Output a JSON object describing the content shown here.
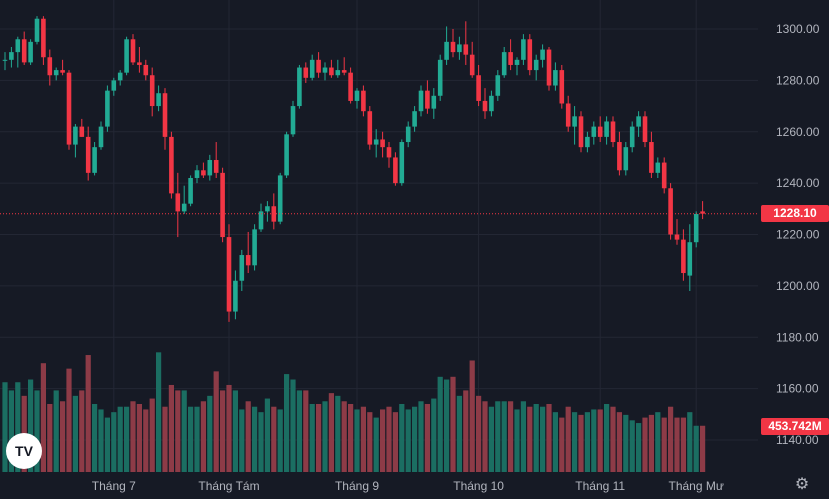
{
  "chart_data": {
    "type": "candlestick",
    "price_axis": {
      "min": 1130,
      "max": 1308,
      "ticks": [
        1300,
        1280,
        1260,
        1240,
        1220,
        1200,
        1180,
        1160,
        1140
      ],
      "tick_labels": [
        "1300.00",
        "1280.00",
        "1260.00",
        "1240.00",
        "1220.00",
        "1200.00",
        "1180.00",
        "1160.00",
        "1140.00"
      ]
    },
    "x_labels": [
      "Tháng 7",
      "Tháng Tám",
      "Tháng 9",
      "Tháng 10",
      "Tháng 11",
      "Tháng Mư"
    ],
    "x_label_bars": [
      17,
      35,
      55,
      74,
      93,
      108
    ],
    "last_price": {
      "value": 1228.1,
      "label": "1228.10",
      "color": "#f23645"
    },
    "last_volume": {
      "label": "453.742M",
      "color": "#f23645"
    },
    "colors": {
      "up": "#22ab94",
      "down": "#f23645",
      "up_volume": "#1b6e62",
      "down_volume": "#8d3b47",
      "background": "#161a25"
    },
    "ohlc": [
      {
        "o": 1288,
        "h": 1291,
        "l": 1284,
        "c": 1288
      },
      {
        "o": 1288,
        "h": 1293,
        "l": 1285,
        "c": 1291
      },
      {
        "o": 1291,
        "h": 1297,
        "l": 1285,
        "c": 1296
      },
      {
        "o": 1296,
        "h": 1299,
        "l": 1286,
        "c": 1287
      },
      {
        "o": 1287,
        "h": 1296,
        "l": 1286,
        "c": 1295
      },
      {
        "o": 1295,
        "h": 1305,
        "l": 1294,
        "c": 1304
      },
      {
        "o": 1304,
        "h": 1305,
        "l": 1286,
        "c": 1289
      },
      {
        "o": 1289,
        "h": 1292,
        "l": 1278,
        "c": 1282
      },
      {
        "o": 1282,
        "h": 1285,
        "l": 1280,
        "c": 1284
      },
      {
        "o": 1284,
        "h": 1288,
        "l": 1282,
        "c": 1283
      },
      {
        "o": 1283,
        "h": 1284,
        "l": 1253,
        "c": 1255
      },
      {
        "o": 1255,
        "h": 1263,
        "l": 1250,
        "c": 1262
      },
      {
        "o": 1262,
        "h": 1265,
        "l": 1258,
        "c": 1258
      },
      {
        "o": 1258,
        "h": 1262,
        "l": 1241,
        "c": 1244
      },
      {
        "o": 1244,
        "h": 1256,
        "l": 1243,
        "c": 1254
      },
      {
        "o": 1254,
        "h": 1264,
        "l": 1253,
        "c": 1262
      },
      {
        "o": 1262,
        "h": 1278,
        "l": 1260,
        "c": 1276
      },
      {
        "o": 1276,
        "h": 1281,
        "l": 1274,
        "c": 1280
      },
      {
        "o": 1280,
        "h": 1284,
        "l": 1278,
        "c": 1283
      },
      {
        "o": 1283,
        "h": 1297,
        "l": 1282,
        "c": 1296
      },
      {
        "o": 1296,
        "h": 1298,
        "l": 1286,
        "c": 1287
      },
      {
        "o": 1287,
        "h": 1293,
        "l": 1283,
        "c": 1286
      },
      {
        "o": 1286,
        "h": 1288,
        "l": 1280,
        "c": 1282
      },
      {
        "o": 1282,
        "h": 1285,
        "l": 1266,
        "c": 1270
      },
      {
        "o": 1270,
        "h": 1278,
        "l": 1268,
        "c": 1275
      },
      {
        "o": 1275,
        "h": 1277,
        "l": 1253,
        "c": 1258
      },
      {
        "o": 1258,
        "h": 1260,
        "l": 1234,
        "c": 1236
      },
      {
        "o": 1236,
        "h": 1244,
        "l": 1219,
        "c": 1229
      },
      {
        "o": 1229,
        "h": 1239,
        "l": 1228,
        "c": 1232
      },
      {
        "o": 1232,
        "h": 1243,
        "l": 1231,
        "c": 1242
      },
      {
        "o": 1242,
        "h": 1247,
        "l": 1240,
        "c": 1245
      },
      {
        "o": 1245,
        "h": 1248,
        "l": 1242,
        "c": 1243
      },
      {
        "o": 1243,
        "h": 1251,
        "l": 1241,
        "c": 1249
      },
      {
        "o": 1249,
        "h": 1256,
        "l": 1242,
        "c": 1244
      },
      {
        "o": 1244,
        "h": 1246,
        "l": 1217,
        "c": 1219
      },
      {
        "o": 1219,
        "h": 1224,
        "l": 1186,
        "c": 1190
      },
      {
        "o": 1190,
        "h": 1206,
        "l": 1187,
        "c": 1202
      },
      {
        "o": 1202,
        "h": 1214,
        "l": 1198,
        "c": 1212
      },
      {
        "o": 1212,
        "h": 1221,
        "l": 1205,
        "c": 1208
      },
      {
        "o": 1208,
        "h": 1224,
        "l": 1206,
        "c": 1222
      },
      {
        "o": 1222,
        "h": 1232,
        "l": 1221,
        "c": 1229
      },
      {
        "o": 1229,
        "h": 1233,
        "l": 1225,
        "c": 1231
      },
      {
        "o": 1231,
        "h": 1236,
        "l": 1222,
        "c": 1225
      },
      {
        "o": 1225,
        "h": 1244,
        "l": 1224,
        "c": 1243
      },
      {
        "o": 1243,
        "h": 1260,
        "l": 1242,
        "c": 1259
      },
      {
        "o": 1259,
        "h": 1272,
        "l": 1258,
        "c": 1270
      },
      {
        "o": 1270,
        "h": 1286,
        "l": 1269,
        "c": 1285
      },
      {
        "o": 1285,
        "h": 1287,
        "l": 1279,
        "c": 1281
      },
      {
        "o": 1281,
        "h": 1290,
        "l": 1280,
        "c": 1288
      },
      {
        "o": 1288,
        "h": 1291,
        "l": 1281,
        "c": 1283
      },
      {
        "o": 1283,
        "h": 1287,
        "l": 1280,
        "c": 1285
      },
      {
        "o": 1285,
        "h": 1288,
        "l": 1281,
        "c": 1282
      },
      {
        "o": 1282,
        "h": 1288,
        "l": 1281,
        "c": 1284
      },
      {
        "o": 1284,
        "h": 1289,
        "l": 1282,
        "c": 1283
      },
      {
        "o": 1283,
        "h": 1285,
        "l": 1271,
        "c": 1272
      },
      {
        "o": 1272,
        "h": 1277,
        "l": 1269,
        "c": 1276
      },
      {
        "o": 1276,
        "h": 1278,
        "l": 1266,
        "c": 1268
      },
      {
        "o": 1268,
        "h": 1270,
        "l": 1253,
        "c": 1255
      },
      {
        "o": 1255,
        "h": 1261,
        "l": 1250,
        "c": 1257
      },
      {
        "o": 1257,
        "h": 1260,
        "l": 1250,
        "c": 1254
      },
      {
        "o": 1254,
        "h": 1256,
        "l": 1246,
        "c": 1250
      },
      {
        "o": 1250,
        "h": 1252,
        "l": 1239,
        "c": 1240
      },
      {
        "o": 1240,
        "h": 1257,
        "l": 1239,
        "c": 1256
      },
      {
        "o": 1256,
        "h": 1264,
        "l": 1254,
        "c": 1262
      },
      {
        "o": 1262,
        "h": 1270,
        "l": 1260,
        "c": 1268
      },
      {
        "o": 1268,
        "h": 1278,
        "l": 1266,
        "c": 1276
      },
      {
        "o": 1276,
        "h": 1280,
        "l": 1267,
        "c": 1269
      },
      {
        "o": 1269,
        "h": 1277,
        "l": 1265,
        "c": 1274
      },
      {
        "o": 1274,
        "h": 1290,
        "l": 1272,
        "c": 1288
      },
      {
        "o": 1288,
        "h": 1301,
        "l": 1286,
        "c": 1295
      },
      {
        "o": 1295,
        "h": 1300,
        "l": 1289,
        "c": 1291
      },
      {
        "o": 1291,
        "h": 1297,
        "l": 1288,
        "c": 1294
      },
      {
        "o": 1294,
        "h": 1303,
        "l": 1286,
        "c": 1290
      },
      {
        "o": 1290,
        "h": 1295,
        "l": 1281,
        "c": 1282
      },
      {
        "o": 1282,
        "h": 1286,
        "l": 1270,
        "c": 1272
      },
      {
        "o": 1272,
        "h": 1277,
        "l": 1265,
        "c": 1268
      },
      {
        "o": 1268,
        "h": 1276,
        "l": 1266,
        "c": 1274
      },
      {
        "o": 1274,
        "h": 1284,
        "l": 1272,
        "c": 1282
      },
      {
        "o": 1282,
        "h": 1293,
        "l": 1281,
        "c": 1291
      },
      {
        "o": 1291,
        "h": 1296,
        "l": 1284,
        "c": 1286
      },
      {
        "o": 1286,
        "h": 1289,
        "l": 1282,
        "c": 1288
      },
      {
        "o": 1288,
        "h": 1298,
        "l": 1286,
        "c": 1296
      },
      {
        "o": 1296,
        "h": 1298,
        "l": 1282,
        "c": 1284
      },
      {
        "o": 1284,
        "h": 1290,
        "l": 1280,
        "c": 1288
      },
      {
        "o": 1288,
        "h": 1294,
        "l": 1285,
        "c": 1292
      },
      {
        "o": 1292,
        "h": 1293,
        "l": 1276,
        "c": 1278
      },
      {
        "o": 1278,
        "h": 1287,
        "l": 1276,
        "c": 1284
      },
      {
        "o": 1284,
        "h": 1286,
        "l": 1269,
        "c": 1271
      },
      {
        "o": 1271,
        "h": 1274,
        "l": 1260,
        "c": 1262
      },
      {
        "o": 1262,
        "h": 1270,
        "l": 1255,
        "c": 1266
      },
      {
        "o": 1266,
        "h": 1268,
        "l": 1252,
        "c": 1254
      },
      {
        "o": 1254,
        "h": 1260,
        "l": 1252,
        "c": 1258
      },
      {
        "o": 1258,
        "h": 1264,
        "l": 1255,
        "c": 1262
      },
      {
        "o": 1262,
        "h": 1266,
        "l": 1256,
        "c": 1258
      },
      {
        "o": 1258,
        "h": 1266,
        "l": 1255,
        "c": 1264
      },
      {
        "o": 1264,
        "h": 1266,
        "l": 1254,
        "c": 1256
      },
      {
        "o": 1256,
        "h": 1260,
        "l": 1243,
        "c": 1245
      },
      {
        "o": 1245,
        "h": 1256,
        "l": 1243,
        "c": 1254
      },
      {
        "o": 1254,
        "h": 1264,
        "l": 1252,
        "c": 1262
      },
      {
        "o": 1262,
        "h": 1268,
        "l": 1258,
        "c": 1266
      },
      {
        "o": 1266,
        "h": 1268,
        "l": 1254,
        "c": 1256
      },
      {
        "o": 1256,
        "h": 1260,
        "l": 1242,
        "c": 1244
      },
      {
        "o": 1244,
        "h": 1250,
        "l": 1242,
        "c": 1248
      },
      {
        "o": 1248,
        "h": 1250,
        "l": 1236,
        "c": 1238
      },
      {
        "o": 1238,
        "h": 1240,
        "l": 1218,
        "c": 1220
      },
      {
        "o": 1220,
        "h": 1226,
        "l": 1216,
        "c": 1218
      },
      {
        "o": 1218,
        "h": 1222,
        "l": 1202,
        "c": 1205
      },
      {
        "o": 1204,
        "h": 1224,
        "l": 1198,
        "c": 1217
      },
      {
        "o": 1217,
        "h": 1229,
        "l": 1215,
        "c": 1228
      },
      {
        "o": 1229,
        "h": 1233,
        "l": 1226,
        "c": 1228.1
      }
    ],
    "volume": [
      33,
      30,
      33,
      28,
      34,
      30,
      40,
      25,
      30,
      26,
      38,
      28,
      30,
      43,
      25,
      23,
      20,
      22,
      24,
      24,
      26,
      25,
      23,
      27,
      44,
      24,
      32,
      30,
      30,
      24,
      24,
      26,
      28,
      37,
      30,
      32,
      30,
      23,
      26,
      24,
      22,
      27,
      24,
      23,
      36,
      34,
      30,
      30,
      25,
      25,
      26,
      29,
      28,
      26,
      25,
      23,
      24,
      22,
      20,
      23,
      24,
      22,
      25,
      23,
      24,
      26,
      25,
      27,
      35,
      34,
      35,
      28,
      30,
      41,
      28,
      26,
      24,
      26,
      26,
      26,
      23,
      26,
      24,
      25,
      24,
      25,
      22,
      20,
      24,
      22,
      21,
      22,
      23,
      23,
      25,
      24,
      22,
      21,
      19,
      18,
      20,
      21,
      22,
      20,
      24,
      20,
      20,
      22,
      17,
      17
    ]
  }
}
